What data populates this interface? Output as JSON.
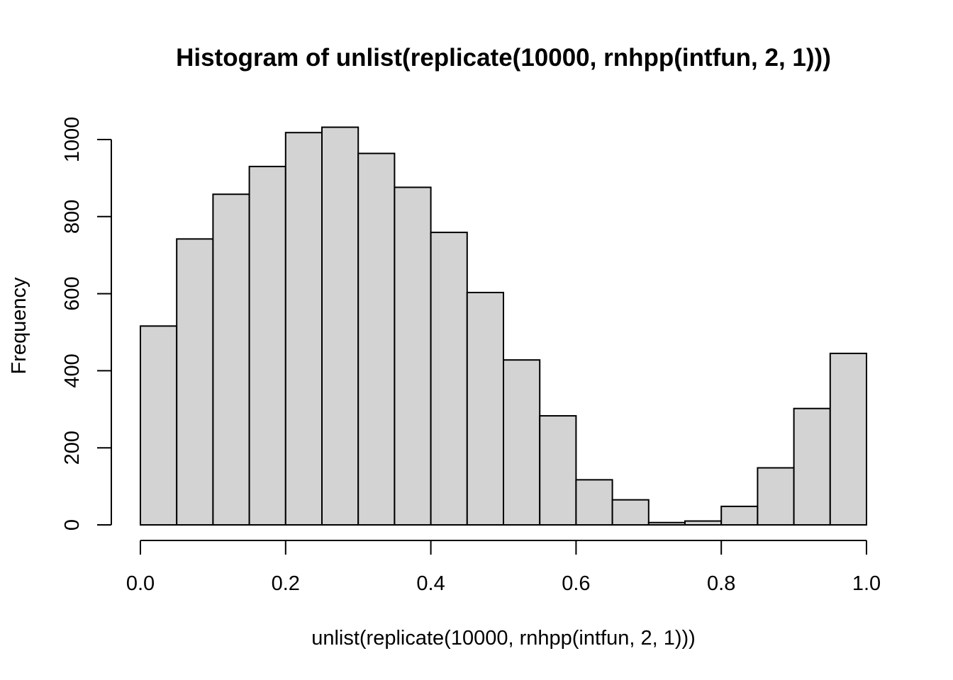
{
  "chart_data": {
    "type": "bar",
    "title": "Histogram of unlist(replicate(10000, rnhpp(intfun, 2, 1)))",
    "xlabel": "unlist(replicate(10000, rnhpp(intfun, 2, 1)))",
    "ylabel": "Frequency",
    "bin_edges": [
      0.0,
      0.05,
      0.1,
      0.15,
      0.2,
      0.25,
      0.3,
      0.35,
      0.4,
      0.45,
      0.5,
      0.55,
      0.6,
      0.65,
      0.7,
      0.75,
      0.8,
      0.85,
      0.9,
      0.95,
      1.0
    ],
    "values": [
      516,
      742,
      858,
      930,
      1018,
      1032,
      964,
      876,
      759,
      603,
      428,
      283,
      117,
      65,
      6,
      10,
      48,
      148,
      302,
      445
    ],
    "xlim": [
      0.0,
      1.0
    ],
    "ylim": [
      0,
      1032
    ],
    "x_ticks": [
      "0.0",
      "0.2",
      "0.4",
      "0.6",
      "0.8",
      "1.0"
    ],
    "y_ticks": [
      "0",
      "200",
      "400",
      "600",
      "800",
      "1000"
    ],
    "grid": false,
    "colors": {
      "bar_fill": "#d3d3d3",
      "bar_stroke": "#000000"
    }
  }
}
